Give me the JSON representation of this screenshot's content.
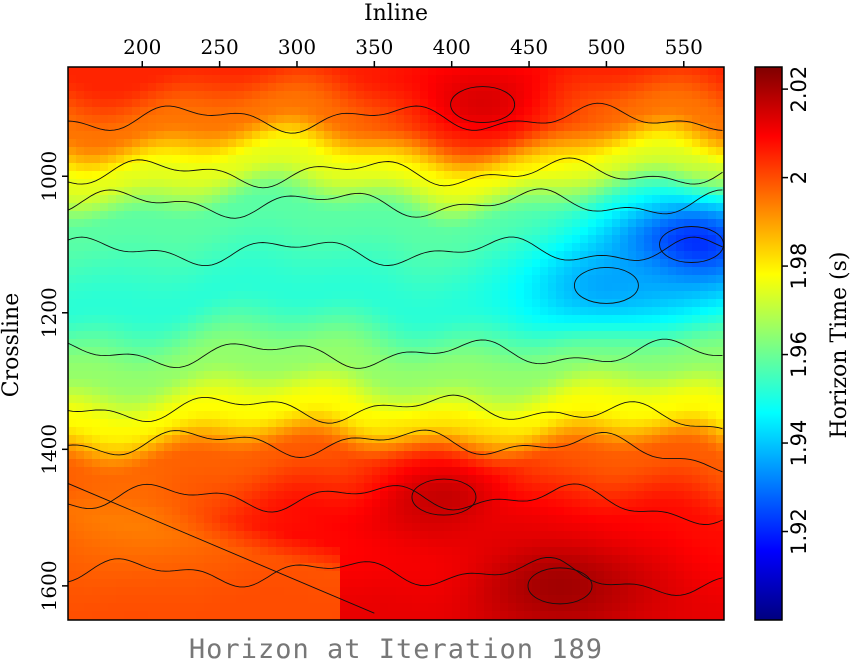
{
  "chart_data": {
    "type": "heatmap",
    "title": "Horizon at Iteration 189",
    "xlabel": "Inline",
    "ylabel": "Crossline",
    "xlim": [
      152,
      576
    ],
    "ylim": [
      1650,
      840
    ],
    "x_ticks": [
      200,
      250,
      300,
      350,
      400,
      450,
      500,
      550
    ],
    "y_ticks": [
      1000,
      1200,
      1400,
      1600
    ],
    "colorbar": {
      "label": "Horizon Time (s)",
      "range": [
        1.9,
        2.025
      ],
      "ticks": [
        1.92,
        1.94,
        1.96,
        1.98,
        2,
        2.02
      ],
      "colormap": "jet"
    },
    "bands": [
      {
        "crossline": 840,
        "value": 2.005
      },
      {
        "crossline": 920,
        "value": 1.995
      },
      {
        "crossline": 990,
        "value": 1.975
      },
      {
        "crossline": 1060,
        "value": 1.958
      },
      {
        "crossline": 1180,
        "value": 1.952
      },
      {
        "crossline": 1280,
        "value": 1.965
      },
      {
        "crossline": 1350,
        "value": 1.978
      },
      {
        "crossline": 1420,
        "value": 1.998
      },
      {
        "crossline": 1520,
        "value": 2.008
      },
      {
        "crossline": 1650,
        "value": 2.012
      }
    ],
    "features": [
      {
        "name": "low-time anomaly",
        "inline": 555,
        "crossline": 1100,
        "value": 1.915
      },
      {
        "name": "low-time lobe",
        "inline": 500,
        "crossline": 1160,
        "value": 1.935
      },
      {
        "name": "deep high-time zone",
        "inline": 470,
        "crossline": 1600,
        "value": 2.022
      },
      {
        "name": "high-time patch",
        "inline": 395,
        "crossline": 1470,
        "value": 2.018
      },
      {
        "name": "high-time patch",
        "inline": 420,
        "crossline": 895,
        "value": 2.015
      },
      {
        "name": "wedge",
        "inline": 200,
        "crossline": 1495,
        "value": 1.995
      }
    ]
  }
}
